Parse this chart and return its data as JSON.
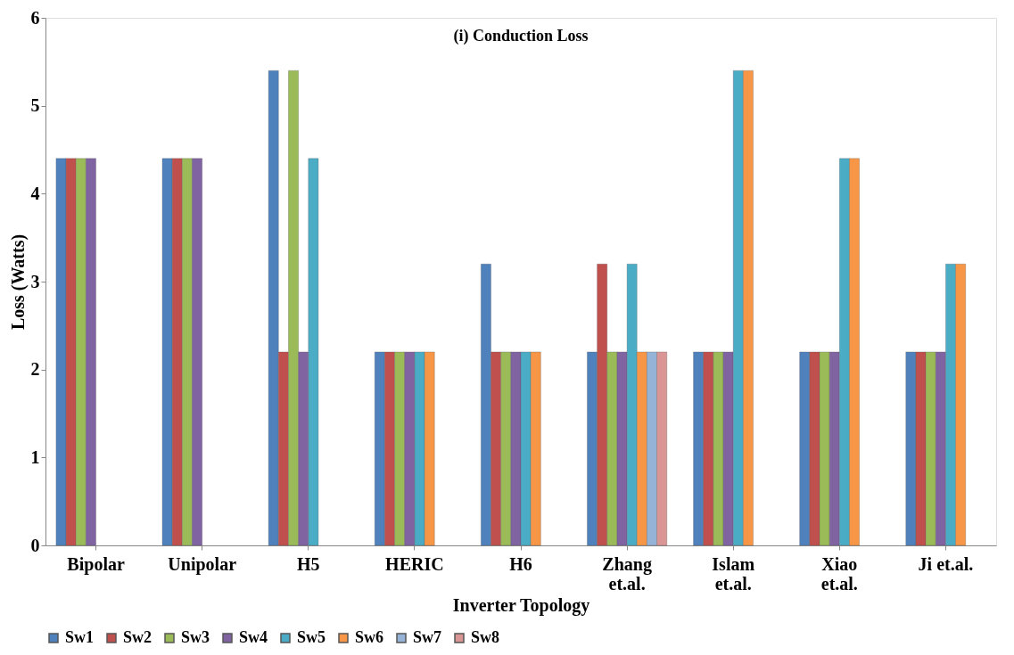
{
  "chart_data": {
    "type": "bar",
    "title": "(i) Conduction Loss",
    "xlabel": "Inverter Topology",
    "ylabel": "Loss (Watts)",
    "categories": [
      "Bipolar",
      "Unipolar",
      "H5",
      "HERIC",
      "H6",
      "Zhang et.al.",
      "Islam et.al.",
      "Xiao et.al.",
      "Ji et.al."
    ],
    "ylim": [
      0,
      6
    ],
    "yticks": [
      0,
      1,
      2,
      3,
      4,
      5,
      6
    ],
    "grid": false,
    "legend": "bottom",
    "series": [
      {
        "name": "Sw1",
        "color": "#4f81bd",
        "values": [
          4.4,
          4.4,
          5.4,
          2.2,
          3.2,
          2.2,
          2.2,
          2.2,
          2.2
        ]
      },
      {
        "name": "Sw2",
        "color": "#c0504d",
        "values": [
          4.4,
          4.4,
          2.2,
          2.2,
          2.2,
          3.2,
          2.2,
          2.2,
          2.2
        ]
      },
      {
        "name": "Sw3",
        "color": "#9bbb59",
        "values": [
          4.4,
          4.4,
          5.4,
          2.2,
          2.2,
          2.2,
          2.2,
          2.2,
          2.2
        ]
      },
      {
        "name": "Sw4",
        "color": "#8064a2",
        "values": [
          4.4,
          4.4,
          2.2,
          2.2,
          2.2,
          2.2,
          2.2,
          2.2,
          2.2
        ]
      },
      {
        "name": "Sw5",
        "color": "#4bacc6",
        "values": [
          null,
          null,
          4.4,
          2.2,
          2.2,
          3.2,
          5.4,
          4.4,
          3.2
        ]
      },
      {
        "name": "Sw6",
        "color": "#f79646",
        "values": [
          null,
          null,
          null,
          2.2,
          2.2,
          2.2,
          5.4,
          4.4,
          3.2
        ]
      },
      {
        "name": "Sw7",
        "color": "#95b3d7",
        "values": [
          null,
          null,
          null,
          null,
          null,
          2.2,
          null,
          null,
          null
        ]
      },
      {
        "name": "Sw8",
        "color": "#d99694",
        "values": [
          null,
          null,
          null,
          null,
          null,
          2.2,
          null,
          null,
          null
        ]
      }
    ]
  }
}
